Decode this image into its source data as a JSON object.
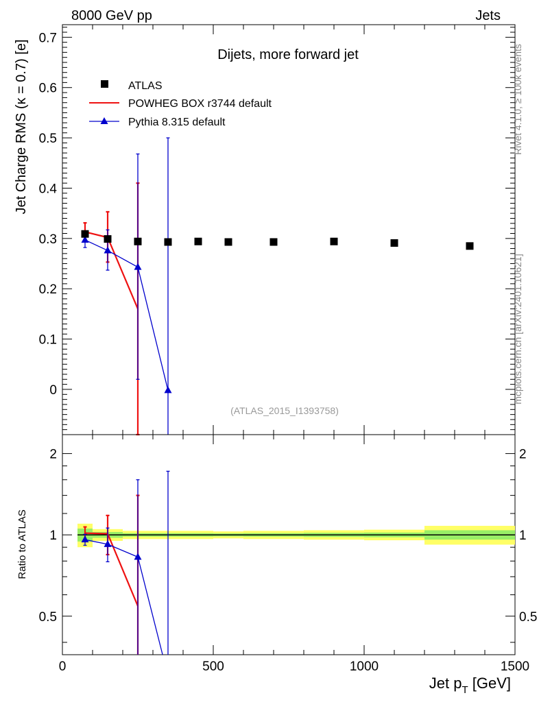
{
  "header": {
    "left": "8000 GeV pp",
    "right": "Jets"
  },
  "side_text": {
    "rivet": "Rivet 4.1.0, ≥ 100k events",
    "mcplots": "mcplots.cern.ch [arXiv:2401.10621]"
  },
  "chart_data": {
    "type": "scatter",
    "title": "Dijets, more forward jet",
    "watermark": "(ATLAS_2015_I1393758)",
    "xlabel": "Jet p",
    "xlabel_sub": "T",
    "xlabel_unit": " [GeV]",
    "ylabel": "Jet Charge RMS (κ = 0.7) [e]",
    "xlim": [
      0,
      1500
    ],
    "ylim": [
      -0.09,
      0.725
    ],
    "xticks": [
      0,
      500,
      1000,
      1500
    ],
    "xtick_labels": [
      "0",
      "500",
      "1000",
      "1500"
    ],
    "yticks": [
      0,
      0.1,
      0.2,
      0.3,
      0.4,
      0.5,
      0.6,
      0.7
    ],
    "ytick_labels": [
      "0",
      "0.1",
      "0.2",
      "0.3",
      "0.4",
      "0.5",
      "0.6",
      "0.7"
    ],
    "legend": [
      "ATLAS",
      "POWHEG BOX r3744 default",
      "Pythia 8.315 default"
    ],
    "legend_position": "top-left",
    "series": [
      {
        "name": "ATLAS",
        "color": "#000000",
        "marker": "square",
        "bins": [
          [
            50,
            100
          ],
          [
            100,
            200
          ],
          [
            200,
            300
          ],
          [
            300,
            400
          ],
          [
            400,
            500
          ],
          [
            500,
            600
          ],
          [
            600,
            800
          ],
          [
            800,
            1000
          ],
          [
            1000,
            1200
          ],
          [
            1200,
            1500
          ]
        ],
        "x": [
          75,
          150,
          250,
          350,
          450,
          550,
          700,
          900,
          1100,
          1350
        ],
        "y": [
          0.309,
          0.299,
          0.294,
          0.293,
          0.294,
          0.293,
          0.293,
          0.294,
          0.291,
          0.285
        ],
        "yerr": [
          0.004,
          0.003,
          0.002,
          0.002,
          0.002,
          0.002,
          0.002,
          0.002,
          0.003,
          0.004
        ]
      },
      {
        "name": "POWHEG BOX r3744 default",
        "color": "#ee1111",
        "marker": "none",
        "x": [
          75,
          150,
          250
        ],
        "y": [
          0.313,
          0.302,
          0.16
        ],
        "ylo": [
          0.296,
          0.253,
          -0.09
        ],
        "yhi": [
          0.331,
          0.353,
          0.41
        ]
      },
      {
        "name": "Pythia 8.315 default",
        "color": "#0000cc",
        "marker": "triangle",
        "x": [
          75,
          150,
          250,
          350
        ],
        "y": [
          0.297,
          0.276,
          0.243,
          -0.002
        ],
        "ylo": [
          0.282,
          0.237,
          0.02,
          -0.09
        ],
        "yhi": [
          0.311,
          0.317,
          0.468,
          0.5
        ]
      }
    ],
    "ratio": {
      "ylabel": "Ratio to ATLAS",
      "ylim": [
        0.36,
        2.35
      ],
      "scale": "log",
      "yticks": [
        0.5,
        1,
        2
      ],
      "ytick_labels": [
        "0.5",
        "1",
        "2"
      ],
      "band_rel_yellow": [
        0.1,
        0.05,
        0.035,
        0.035,
        0.035,
        0.03,
        0.035,
        0.04,
        0.045,
        0.08
      ],
      "band_rel_green": [
        0.055,
        0.025,
        0.015,
        0.015,
        0.015,
        0.013,
        0.015,
        0.018,
        0.02,
        0.04
      ],
      "series": [
        {
          "name": "POWHEG BOX r3744 default",
          "color": "#ee1111",
          "x": [
            75,
            150,
            250
          ],
          "y": [
            1.015,
            1.01,
            0.545
          ],
          "ylo": [
            0.96,
            0.845,
            0.3
          ],
          "yhi": [
            1.07,
            1.18,
            1.4
          ]
        },
        {
          "name": "Pythia 8.315 default",
          "color": "#0000cc",
          "x": [
            75,
            150,
            250,
            350
          ],
          "y": [
            0.96,
            0.923,
            0.828,
            0.3
          ],
          "ylo": [
            0.915,
            0.795,
            0.3,
            0.3
          ],
          "yhi": [
            1.005,
            1.06,
            1.6,
            1.72
          ]
        }
      ]
    }
  }
}
